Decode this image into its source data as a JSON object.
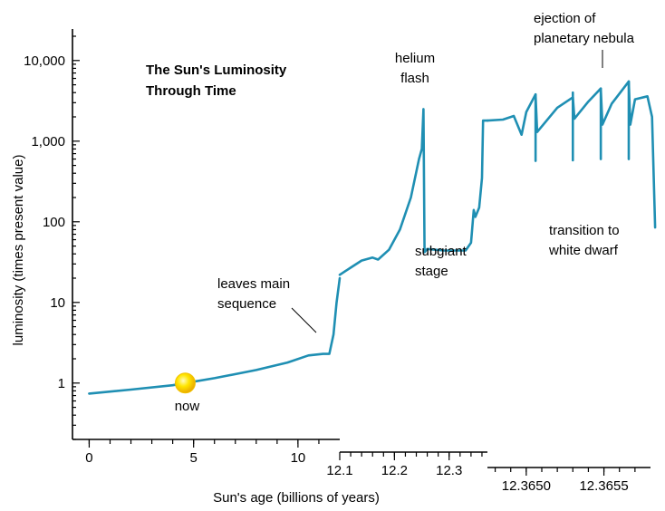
{
  "chart_data": {
    "type": "line",
    "title": [
      "The Sun's Luminosity",
      "Through Time"
    ],
    "xlabel": "Sun's age (billions of years)",
    "ylabel": "luminosity (times present value)",
    "y_scale": "log",
    "ylim": [
      0.2,
      20000
    ],
    "y_ticks": [
      {
        "value": 1,
        "label": "1"
      },
      {
        "value": 10,
        "label": "10"
      },
      {
        "value": 100,
        "label": "100"
      },
      {
        "value": 1000,
        "label": "1,000"
      },
      {
        "value": 10000,
        "label": "10,000"
      }
    ],
    "x_segments": [
      {
        "range": [
          -0.8,
          12.0
        ],
        "ticks": [
          {
            "value": 0,
            "label": "0"
          },
          {
            "value": 5,
            "label": "5"
          },
          {
            "value": 10,
            "label": "10"
          }
        ],
        "minor_step": 1
      },
      {
        "range": [
          12.1,
          12.37
        ],
        "ticks": [
          {
            "value": 12.1,
            "label": "12.1"
          },
          {
            "value": 12.2,
            "label": "12.2"
          },
          {
            "value": 12.3,
            "label": "12.3"
          }
        ],
        "minor_step": 0.02
      },
      {
        "range": [
          12.36475,
          12.3658
        ],
        "ticks": [
          {
            "value": 12.365,
            "label": "12.3650"
          },
          {
            "value": 12.3655,
            "label": "12.3655"
          }
        ],
        "minor_step": 0.0001
      }
    ],
    "series": [
      {
        "color": "#1f8fb3",
        "segment_points": [
          [
            [
              0,
              0.74
            ],
            [
              2,
              0.83
            ],
            [
              4,
              0.94
            ],
            [
              4.6,
              1.0
            ],
            [
              6,
              1.15
            ],
            [
              8,
              1.45
            ],
            [
              9.5,
              1.8
            ],
            [
              10.5,
              2.2
            ],
            [
              11.2,
              2.3
            ],
            [
              11.5,
              2.3
            ],
            [
              11.7,
              4
            ],
            [
              11.85,
              10
            ],
            [
              12.0,
              20
            ]
          ],
          [
            [
              12.1,
              22
            ],
            [
              12.12,
              27
            ],
            [
              12.14,
              33
            ],
            [
              12.16,
              36
            ],
            [
              12.17,
              34
            ],
            [
              12.19,
              45
            ],
            [
              12.21,
              80
            ],
            [
              12.23,
              200
            ],
            [
              12.245,
              600
            ],
            [
              12.25,
              800
            ],
            [
              12.253,
              2500
            ],
            [
              12.255,
              42
            ],
            [
              12.26,
              46
            ],
            [
              12.29,
              44
            ],
            [
              12.33,
              44
            ],
            [
              12.34,
              55
            ],
            [
              12.345,
              140
            ],
            [
              12.348,
              115
            ],
            [
              12.355,
              150
            ],
            [
              12.36,
              350
            ],
            [
              12.362,
              1800
            ],
            [
              12.37,
              1800
            ]
          ],
          [
            [
              12.36475,
              1800
            ],
            [
              12.36485,
              1850
            ],
            [
              12.36492,
              2050
            ],
            [
              12.36497,
              1200
            ],
            [
              12.365,
              2300
            ],
            [
              12.36506,
              3800
            ],
            [
              12.36507,
              1300
            ],
            [
              12.3652,
              2600
            ],
            [
              12.3653,
              3500
            ],
            [
              12.36531,
              1900
            ],
            [
              12.3654,
              3100
            ],
            [
              12.36548,
              4500
            ],
            [
              12.36549,
              1600
            ],
            [
              12.36555,
              2900
            ],
            [
              12.36566,
              5500
            ],
            [
              12.36567,
              1600
            ],
            [
              12.3657,
              3300
            ],
            [
              12.36578,
              3600
            ],
            [
              12.36581,
              2000
            ],
            [
              12.36583,
              85
            ]
          ]
        ],
        "spikes": [
          {
            "segment": 2,
            "x": 12.36506,
            "low": 570,
            "high": 3800
          },
          {
            "segment": 2,
            "x": 12.3653,
            "low": 580,
            "high": 4000
          },
          {
            "segment": 2,
            "x": 12.36548,
            "low": 600,
            "high": 4500
          },
          {
            "segment": 2,
            "x": 12.36566,
            "low": 600,
            "high": 5500
          }
        ]
      }
    ],
    "marker": {
      "segment": 0,
      "x": 4.6,
      "y": 1.0,
      "label": "now"
    },
    "annotations": [
      {
        "lines": [
          "helium",
          "flash"
        ]
      },
      {
        "lines": [
          "leaves main",
          "sequence"
        ]
      },
      {
        "lines": [
          "subgiant",
          "stage"
        ]
      },
      {
        "lines": [
          "ejection of",
          "planetary nebula"
        ]
      },
      {
        "lines": [
          "transition to",
          "white dwarf"
        ]
      }
    ]
  }
}
